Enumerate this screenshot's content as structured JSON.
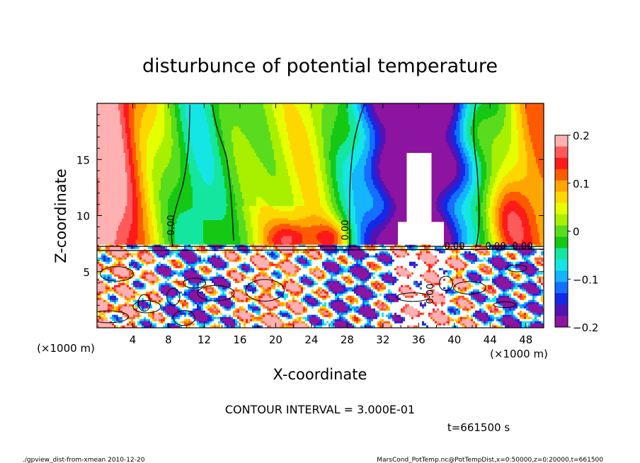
{
  "chart_data": {
    "type": "heatmap",
    "title": "disturbunce of potential temperature",
    "xlabel": "X-coordinate",
    "ylabel": "Z-coordinate",
    "x_unit_left": "(×1000 m)",
    "x_unit_right": "(×1000 m)",
    "x_unit_under_y": "(×1000 m)",
    "xlim": [
      0,
      50
    ],
    "ylim": [
      0,
      20
    ],
    "x_ticks": [
      "4",
      "8",
      "12",
      "16",
      "20",
      "24",
      "28",
      "32",
      "36",
      "40",
      "44",
      "48"
    ],
    "x_tick_values": [
      4,
      8,
      12,
      16,
      20,
      24,
      28,
      32,
      36,
      40,
      44,
      48
    ],
    "y_ticks": [
      "5",
      "10",
      "15"
    ],
    "y_tick_values": [
      5,
      10,
      15
    ],
    "colorbar": {
      "min": -0.2,
      "max": 0.2,
      "tick_labels": [
        "0.2",
        "0.1",
        "0",
        "−0.1",
        "−0.2"
      ],
      "tick_values": [
        0.2,
        0.1,
        0,
        -0.1,
        -0.2
      ],
      "colors": [
        "#ffb0b0",
        "#ff5a5a",
        "#ff1a1a",
        "#ff5a00",
        "#ffa500",
        "#ffd700",
        "#e6ff00",
        "#a8f000",
        "#5adc1e",
        "#14c814",
        "#14e6a0",
        "#14e6e6",
        "#14b4ff",
        "#146eff",
        "#1428e6",
        "#5014b4",
        "#8c14a0"
      ]
    },
    "contour_labels": [
      "0.00",
      "0.00",
      "0.00",
      "0.00",
      "0.00",
      "0.00"
    ],
    "contour_interval_text": "CONTOUR INTERVAL = 3.000E-01",
    "time_text": "t=661500 s",
    "footer_left": "./gpview_dist-from-xmean  2010-12-20",
    "footer_right": "MarsCond_PotTemp.nc@PotTempDist,x=0:50000,z=0:20000,t=661500"
  }
}
